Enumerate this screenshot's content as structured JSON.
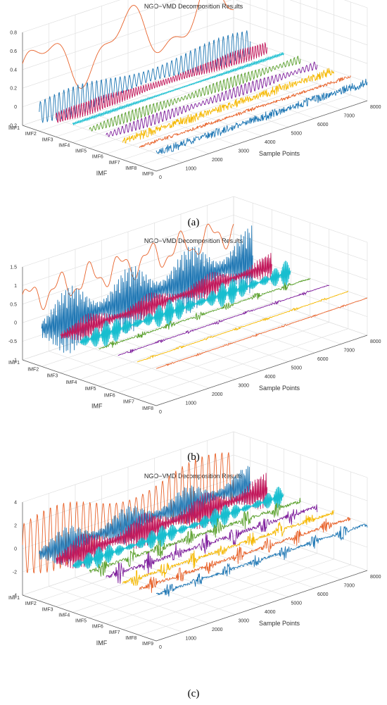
{
  "figures": [
    {
      "caption": "(a)",
      "chart_data": {
        "type": "line",
        "title": "NGO−VMD Decomposition Results",
        "xlabel": "Sample Points",
        "zlabel": "IMF",
        "x_ticks": [
          "0",
          "1000",
          "2000",
          "3000",
          "4000",
          "5000",
          "6000",
          "7000",
          "8000"
        ],
        "y_ticks": [
          "IMF1",
          "IMF2",
          "IMF3",
          "IMF4",
          "IMF5",
          "IMF6",
          "IMF7",
          "IMF8",
          "IMF9"
        ],
        "z_ticks": [
          "-0.2",
          "0",
          "0.2",
          "0.4",
          "0.6",
          "0.8"
        ],
        "z_range": [
          -0.2,
          0.8
        ],
        "x_range": [
          0,
          8000
        ],
        "grid": true,
        "series": [
          {
            "color": "#e8632b",
            "kind": "slow",
            "amp": 0.75,
            "cycles": 2.5,
            "offset": 0.35
          },
          {
            "color": "#1f77b4",
            "kind": "sine",
            "amp": 0.16,
            "cycles": 45
          },
          {
            "color": "#c2185b",
            "kind": "sine",
            "amp": 0.08,
            "cycles": 85
          },
          {
            "color": "#17becf",
            "kind": "sine",
            "amp": 0.02,
            "cycles": 150
          },
          {
            "color": "#5aa02c",
            "kind": "wavy",
            "amp": 0.06,
            "cycles": 60
          },
          {
            "color": "#7e1e9c",
            "kind": "wavy",
            "amp": 0.06,
            "cycles": 55
          },
          {
            "color": "#f5b800",
            "kind": "noise",
            "amp": 0.05,
            "cycles": 200
          },
          {
            "color": "#e8632b",
            "kind": "noise",
            "amp": 0.02,
            "cycles": 220
          },
          {
            "color": "#1f77b4",
            "kind": "noise",
            "amp": 0.05,
            "cycles": 240
          }
        ]
      }
    },
    {
      "caption": "(b)",
      "chart_data": {
        "type": "line",
        "title": "NGO−VMD Decomposition Results",
        "xlabel": "Sample Points",
        "zlabel": "IMF",
        "x_ticks": [
          "0",
          "1000",
          "2000",
          "3000",
          "4000",
          "5000",
          "6000",
          "7000",
          "8000"
        ],
        "y_ticks": [
          "IMF1",
          "IMF2",
          "IMF3",
          "IMF4",
          "IMF5",
          "IMF6",
          "IMF7",
          "IMF8"
        ],
        "z_ticks": [
          "-1",
          "-0.5",
          "0",
          "0.5",
          "1",
          "1.5"
        ],
        "z_range": [
          -1,
          1.5
        ],
        "x_range": [
          0,
          8000
        ],
        "grid": true,
        "series": [
          {
            "color": "#e8632b",
            "kind": "slow",
            "amp": 0.9,
            "cycles": 7,
            "offset": 0.6
          },
          {
            "color": "#1f77b4",
            "kind": "burst",
            "amp": 0.9,
            "cycles": 160
          },
          {
            "color": "#c2185b",
            "kind": "burst",
            "amp": 0.35,
            "cycles": 170
          },
          {
            "color": "#17becf",
            "kind": "burst",
            "amp": 0.35,
            "cycles": 220
          },
          {
            "color": "#5aa02c",
            "kind": "spiky",
            "amp": 0.12,
            "cycles": 250
          },
          {
            "color": "#7e1e9c",
            "kind": "spiky",
            "amp": 0.05,
            "cycles": 250
          },
          {
            "color": "#f5b800",
            "kind": "spiky",
            "amp": 0.04,
            "cycles": 250
          },
          {
            "color": "#e8632b",
            "kind": "spiky",
            "amp": 0.03,
            "cycles": 250
          }
        ]
      }
    },
    {
      "caption": "(c)",
      "chart_data": {
        "type": "line",
        "title": "NGO−VMD Decomposition Results",
        "xlabel": "Sample Points",
        "zlabel": "IMF",
        "x_ticks": [
          "0",
          "1000",
          "2000",
          "3000",
          "4000",
          "5000",
          "6000",
          "7000",
          "8000"
        ],
        "y_ticks": [
          "IMF1",
          "IMF2",
          "IMF3",
          "IMF4",
          "IMF5",
          "IMF6",
          "IMF7",
          "IMF8",
          "IMF9"
        ],
        "z_ticks": [
          "-4",
          "-2",
          "0",
          "2",
          "4"
        ],
        "z_range": [
          -4,
          4
        ],
        "x_range": [
          0,
          8000
        ],
        "grid": true,
        "series": [
          {
            "color": "#e8632b",
            "kind": "sine",
            "amp": 2.8,
            "cycles": 32
          },
          {
            "color": "#1f77b4",
            "kind": "burst",
            "amp": 1.6,
            "cycles": 150
          },
          {
            "color": "#c2185b",
            "kind": "burst",
            "amp": 1.5,
            "cycles": 170
          },
          {
            "color": "#17becf",
            "kind": "burst",
            "amp": 0.9,
            "cycles": 220
          },
          {
            "color": "#5aa02c",
            "kind": "spiky",
            "amp": 0.9,
            "cycles": 250
          },
          {
            "color": "#7e1e9c",
            "kind": "spiky",
            "amp": 1.0,
            "cycles": 250
          },
          {
            "color": "#f5b800",
            "kind": "spiky",
            "amp": 0.8,
            "cycles": 250
          },
          {
            "color": "#e8632b",
            "kind": "spiky",
            "amp": 0.8,
            "cycles": 250
          },
          {
            "color": "#1f77b4",
            "kind": "spiky",
            "amp": 0.7,
            "cycles": 250
          }
        ]
      }
    }
  ]
}
